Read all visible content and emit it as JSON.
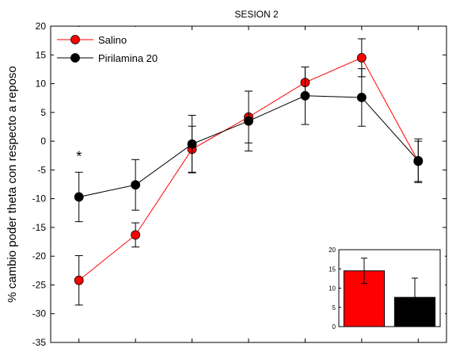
{
  "chart_data": {
    "type": "line",
    "title": "SESION 2",
    "xlabel": "",
    "ylabel": "% cambio poder theta con respecto a reposo",
    "ylim": [
      -35,
      20
    ],
    "yticks": [
      -35,
      -30,
      -25,
      -20,
      -15,
      -10,
      -5,
      0,
      5,
      10,
      15,
      20
    ],
    "x": [
      1,
      2,
      3,
      4,
      5,
      6,
      7
    ],
    "xlim": [
      0.5,
      7.5
    ],
    "legend_position": "top-left",
    "series": [
      {
        "name": "Salino",
        "color": "#ff0000",
        "values": [
          -24.2,
          -16.3,
          -1.4,
          4.2,
          10.2,
          14.5,
          -3.5
        ],
        "errors": [
          4.3,
          2.1,
          4.0,
          4.5,
          2.7,
          3.3,
          3.5
        ]
      },
      {
        "name": "Pirilamina 20",
        "color": "#000000",
        "values": [
          -9.7,
          -7.6,
          -0.5,
          3.5,
          7.9,
          7.6,
          -3.4
        ],
        "errors": [
          4.3,
          4.4,
          5.0,
          5.2,
          5.0,
          5.0,
          3.8
        ]
      }
    ],
    "annotations": [
      {
        "text": "*",
        "x": 1,
        "y": -3.5
      }
    ],
    "inset": {
      "type": "bar",
      "ylim": [
        0,
        20
      ],
      "yticks": [
        0,
        5,
        10,
        15,
        20
      ],
      "values": [
        14.5,
        7.6
      ],
      "errors": [
        3.3,
        5.0
      ],
      "colors": [
        "#ff0000",
        "#000000"
      ],
      "position": "bottom-right"
    }
  }
}
